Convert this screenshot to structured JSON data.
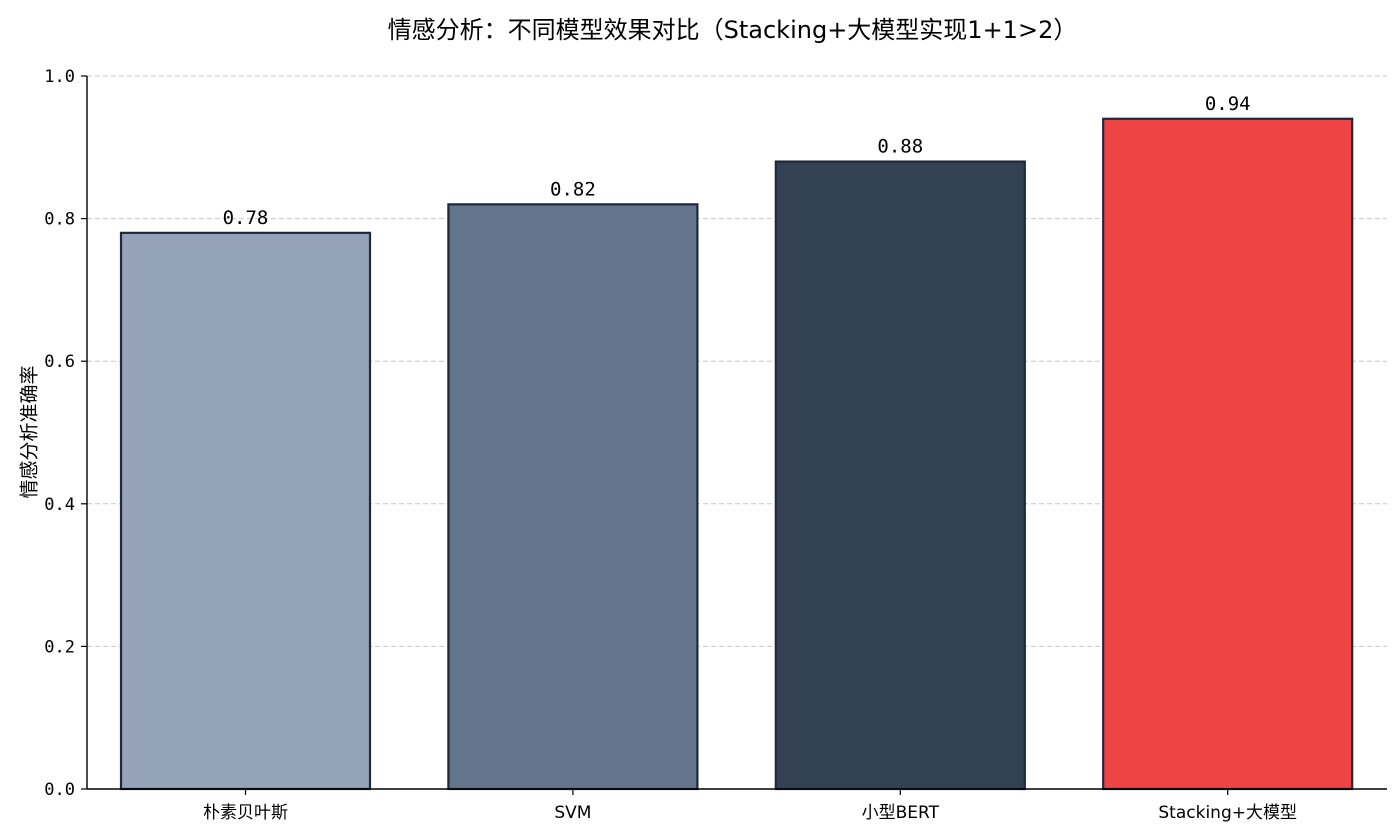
{
  "chart_data": {
    "type": "bar",
    "title": "情感分析：不同模型效果对比（Stacking+大模型实现1+1>2）",
    "xlabel": "",
    "ylabel": "情感分析准确率",
    "categories": [
      "朴素贝叶斯",
      "SVM",
      "小型BERT",
      "Stacking+大模型"
    ],
    "values": [
      0.78,
      0.82,
      0.88,
      0.94
    ],
    "value_labels": [
      "0.78",
      "0.82",
      "0.88",
      "0.94"
    ],
    "colors": [
      "#94A3B8",
      "#64748B",
      "#334155",
      "#EF4444"
    ],
    "edge_color": "#1E293B",
    "ylim": [
      0,
      1.0
    ],
    "yticks": [
      0.0,
      0.2,
      0.4,
      0.6,
      0.8,
      1.0
    ],
    "ytick_labels": [
      "0.0",
      "0.2",
      "0.4",
      "0.6",
      "0.8",
      "1.0"
    ],
    "grid": {
      "axis": "y",
      "style": "dashed",
      "color": "#c8c8c8"
    },
    "legend": null
  }
}
